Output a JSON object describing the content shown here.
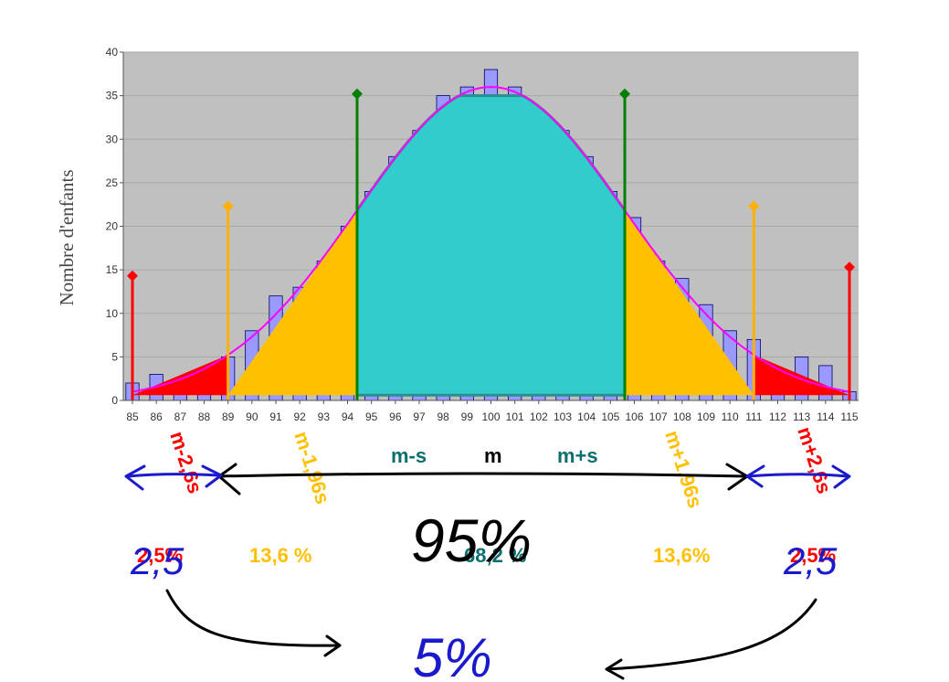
{
  "chart_data": {
    "type": "bar",
    "ylabel": "Nombre d'enfants",
    "ylim": [
      0,
      40
    ],
    "yticks": [
      0,
      5,
      10,
      15,
      20,
      25,
      30,
      35,
      40
    ],
    "categories": [
      "85",
      "86",
      "87",
      "88",
      "89",
      "90",
      "91",
      "92",
      "93",
      "94",
      "95",
      "96",
      "97",
      "98",
      "99",
      "100",
      "101",
      "102",
      "103",
      "104",
      "105",
      "106",
      "107",
      "108",
      "109",
      "110",
      "111",
      "112",
      "113",
      "114",
      "115"
    ],
    "values": [
      2,
      3,
      1,
      1,
      5,
      8,
      12,
      13,
      16,
      20,
      24,
      28,
      31,
      35,
      36,
      38,
      36,
      32,
      31,
      28,
      24,
      21,
      16,
      14,
      11,
      8,
      7,
      3,
      5,
      4,
      1
    ],
    "mean": 100,
    "sd": 5.6,
    "curve_peak": 36,
    "bar_color": "#9999ff",
    "curve_color": "#ff00ff",
    "plot_bg": "#c0c0c0",
    "zones": [
      {
        "from": 85,
        "to": 89,
        "color": "#ff0000"
      },
      {
        "from": 89,
        "to": 94.4,
        "color": "#ffc000"
      },
      {
        "from": 94.4,
        "to": 105.6,
        "color": "#33cccc"
      },
      {
        "from": 105.6,
        "to": 111,
        "color": "#ffc000"
      },
      {
        "from": 111,
        "to": 115,
        "color": "#ff0000"
      }
    ],
    "markers": [
      {
        "x": 85,
        "top": 14.3,
        "color": "#ff0000"
      },
      {
        "x": 89,
        "top": 22.3,
        "color": "#ffb000"
      },
      {
        "x": 94.4,
        "top": 35.2,
        "color": "#008000"
      },
      {
        "x": 105.6,
        "top": 35.2,
        "color": "#008000"
      },
      {
        "x": 111,
        "top": 22.3,
        "color": "#ffb000"
      },
      {
        "x": 115,
        "top": 15.3,
        "color": "#ff0000"
      }
    ]
  },
  "labels": {
    "m_minus_2_6s": "m-2,6s",
    "m_minus_1_96s": "m-1,96s",
    "m_minus_s": "m-s",
    "m": "m",
    "m_plus_s": "m+s",
    "m_plus_1_96s": "m+1,96s",
    "m_plus_2_6s": "m+2,6s",
    "pct_left_red": "2,5%",
    "pct_left_orange": "13,6 %",
    "pct_center": "68,2 %",
    "pct_right_orange": "13,6%",
    "pct_right_red": "2,5%"
  },
  "annotations": {
    "hand_95": "95%",
    "hand_5": "5%",
    "hand_left": "2,5",
    "hand_right": "2,5"
  },
  "colors": {
    "red": "#ff0000",
    "orange": "#ffc000",
    "teal": "#0b6f6f",
    "ink_black": "#000000",
    "ink_blue": "#1a1acc"
  }
}
